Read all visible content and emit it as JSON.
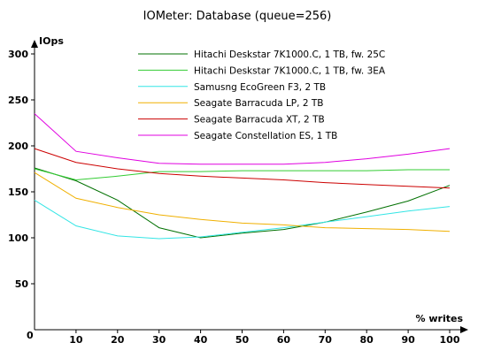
{
  "chart_data": {
    "type": "line",
    "title": "IOMeter: Database (queue=256)",
    "xlabel": "% writes",
    "ylabel": "IOps",
    "x": [
      0,
      10,
      20,
      30,
      40,
      50,
      60,
      70,
      80,
      90,
      100
    ],
    "xlim": [
      0,
      100
    ],
    "ylim": [
      0,
      300
    ],
    "xticks": [
      "0",
      "10",
      "20",
      "30",
      "40",
      "50",
      "60",
      "70",
      "80",
      "90",
      "100"
    ],
    "yticks": [
      "50",
      "100",
      "150",
      "200",
      "250",
      "300"
    ],
    "grid": false,
    "legend_position": "top-right",
    "series": [
      {
        "name": "Hitachi Deskstar 7K1000.C, 1 TB, fw. 25C",
        "color": "#007000",
        "values": [
          176,
          162,
          141,
          111,
          100,
          105,
          109,
          117,
          128,
          140,
          157
        ]
      },
      {
        "name": "Hitachi Deskstar 7K1000.C, 1 TB, fw. 3EA",
        "color": "#33cc33",
        "values": [
          175,
          163,
          167,
          172,
          172,
          173,
          173,
          173,
          173,
          174,
          174
        ]
      },
      {
        "name": "Samusng EcoGreen F3, 2 TB",
        "color": "#33e5e5",
        "values": [
          141,
          113,
          102,
          99,
          101,
          106,
          111,
          117,
          123,
          129,
          134
        ]
      },
      {
        "name": "Seagate Barracuda LP, 2 TB",
        "color": "#f0b000",
        "values": [
          171,
          143,
          133,
          125,
          120,
          116,
          114,
          111,
          110,
          109,
          107
        ]
      },
      {
        "name": "Seagate Barracuda XT, 2 TB",
        "color": "#cc0000",
        "values": [
          197,
          182,
          175,
          170,
          167,
          165,
          163,
          160,
          158,
          156,
          154
        ]
      },
      {
        "name": "Seagate Constellation ES, 1 TB",
        "color": "#e000e0",
        "values": [
          235,
          194,
          187,
          181,
          180,
          180,
          180,
          182,
          186,
          191,
          197
        ]
      }
    ]
  }
}
